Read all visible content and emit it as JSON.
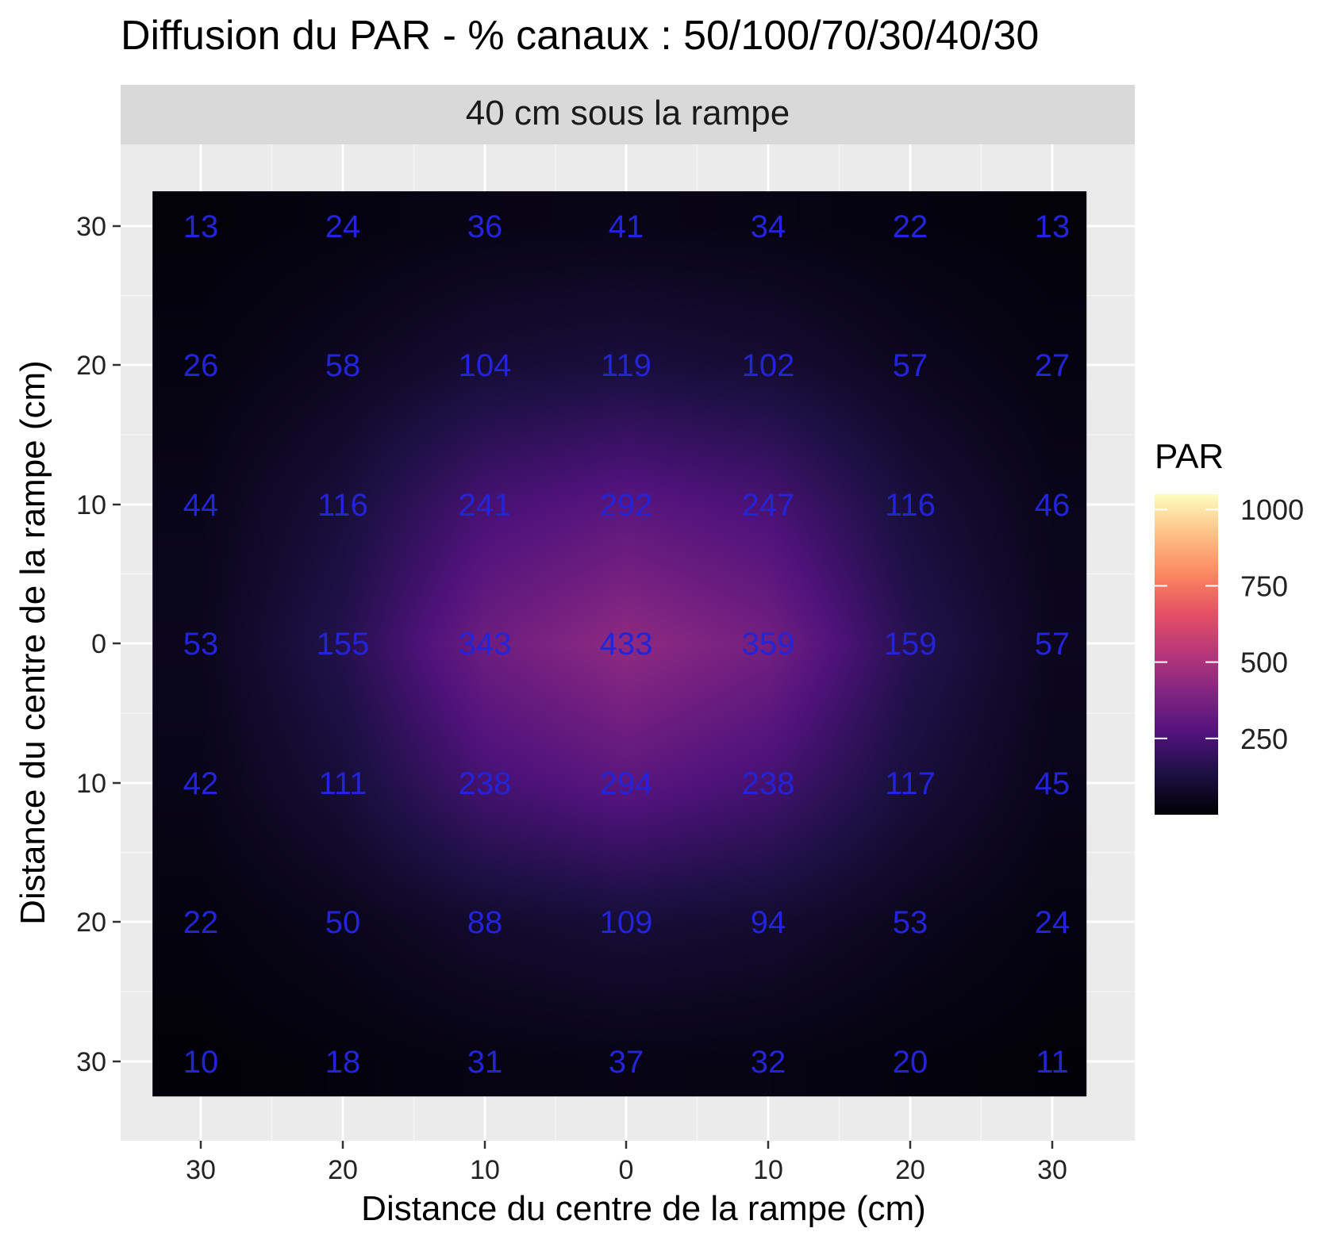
{
  "chart_data": {
    "type": "heatmap",
    "title": "Diffusion du PAR - % canaux : 50/100/70/30/40/30",
    "facet_label": "40 cm sous la rampe",
    "xlabel": "Distance du centre de la rampe (cm)",
    "ylabel": "Distance du centre de la rampe (cm)",
    "x": [
      -30,
      -20,
      -10,
      0,
      10,
      20,
      30
    ],
    "y": [
      30,
      20,
      10,
      0,
      -10,
      -20,
      -30
    ],
    "x_tick_labels": [
      "30",
      "20",
      "10",
      "0",
      "10",
      "20",
      "30"
    ],
    "y_tick_labels": [
      "30",
      "20",
      "10",
      "0",
      "10",
      "20",
      "30"
    ],
    "xlim": [
      -36,
      36
    ],
    "ylim": [
      -36,
      36
    ],
    "values": [
      [
        13,
        24,
        36,
        41,
        34,
        22,
        13
      ],
      [
        26,
        58,
        104,
        119,
        102,
        57,
        27
      ],
      [
        44,
        116,
        241,
        292,
        247,
        116,
        46
      ],
      [
        53,
        155,
        343,
        433,
        359,
        159,
        57
      ],
      [
        42,
        111,
        238,
        294,
        238,
        117,
        45
      ],
      [
        22,
        50,
        88,
        109,
        94,
        53,
        24
      ],
      [
        10,
        18,
        31,
        37,
        32,
        20,
        11
      ]
    ],
    "grid": true,
    "legend": {
      "title": "PAR",
      "position": "right",
      "ticks": [
        250,
        500,
        750,
        1000
      ],
      "range": [
        0,
        1050
      ],
      "palette": "magma"
    },
    "label_color": "#2323d8",
    "panel_background": "#ebebeb",
    "strip_background": "#d9d9d9"
  }
}
